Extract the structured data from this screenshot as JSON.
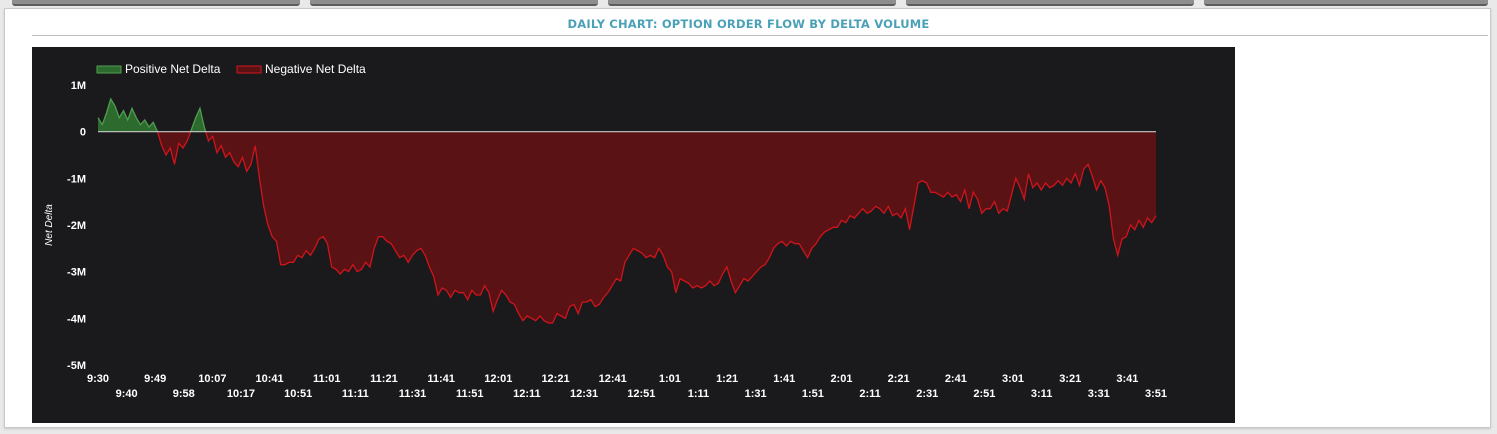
{
  "panel": {
    "title": "DAILY CHART: OPTION ORDER FLOW BY DELTA VOLUME"
  },
  "colors": {
    "positive_fill": "#2d6a2d",
    "positive_line": "#4f9d4f",
    "negative_fill": "#5b1215",
    "negative_line": "#d0141b",
    "zero_line": "#c8c8c8",
    "chart_bg": "#1a1a1c",
    "title": "#4aa1b7"
  },
  "chart_data": {
    "type": "area",
    "title": "",
    "xlabel": "",
    "ylabel": "Net Delta",
    "ylim": [
      -5000000,
      1000000
    ],
    "y_ticks": [
      {
        "v": 1000000,
        "label": "1M"
      },
      {
        "v": 0,
        "label": "0"
      },
      {
        "v": -1000000,
        "label": "-1M"
      },
      {
        "v": -2000000,
        "label": "-2M"
      },
      {
        "v": -3000000,
        "label": "-3M"
      },
      {
        "v": -4000000,
        "label": "-4M"
      },
      {
        "v": -5000000,
        "label": "-5M"
      }
    ],
    "x_ticks_top": [
      "9:30",
      "9:49",
      "10:07",
      "10:41",
      "11:01",
      "11:21",
      "11:41",
      "12:01",
      "12:21",
      "12:41",
      "1:01",
      "1:21",
      "1:41",
      "2:01",
      "2:21",
      "2:41",
      "3:01",
      "3:21",
      "3:41"
    ],
    "x_ticks_bottom": [
      "9:40",
      "9:58",
      "10:17",
      "10:51",
      "11:11",
      "11:31",
      "11:51",
      "12:11",
      "12:31",
      "12:51",
      "1:11",
      "1:31",
      "1:51",
      "2:11",
      "2:31",
      "2:51",
      "3:11",
      "3:31",
      "3:51"
    ],
    "legend": {
      "position": "top-left",
      "entries": [
        "Positive Net Delta",
        "Negative Net Delta"
      ]
    },
    "grid": false,
    "series": [
      {
        "name": "Net Delta",
        "values": [
          300000,
          150000,
          400000,
          700000,
          550000,
          300000,
          450000,
          250000,
          500000,
          300000,
          150000,
          250000,
          100000,
          200000,
          0,
          -300000,
          -500000,
          -350000,
          -700000,
          -250000,
          -350000,
          -200000,
          50000,
          300000,
          500000,
          100000,
          -200000,
          -100000,
          -450000,
          -300000,
          -550000,
          -450000,
          -650000,
          -750000,
          -550000,
          -850000,
          -700000,
          -300000,
          -1000000,
          -1600000,
          -2000000,
          -2250000,
          -2350000,
          -2850000,
          -2850000,
          -2800000,
          -2800000,
          -2650000,
          -2700000,
          -2550000,
          -2650000,
          -2500000,
          -2300000,
          -2250000,
          -2400000,
          -2900000,
          -2950000,
          -3050000,
          -2950000,
          -3000000,
          -2850000,
          -3000000,
          -2950000,
          -2800000,
          -2900000,
          -2500000,
          -2250000,
          -2250000,
          -2350000,
          -2400000,
          -2550000,
          -2700000,
          -2650000,
          -2800000,
          -2650000,
          -2550000,
          -2500000,
          -2650000,
          -2900000,
          -3100000,
          -3500000,
          -3350000,
          -3400000,
          -3550000,
          -3400000,
          -3450000,
          -3450000,
          -3600000,
          -3400000,
          -3500000,
          -3500000,
          -3300000,
          -3450000,
          -3850000,
          -3600000,
          -3400000,
          -3500000,
          -3650000,
          -3700000,
          -3900000,
          -4050000,
          -3950000,
          -4000000,
          -4050000,
          -3950000,
          -4050000,
          -4100000,
          -4100000,
          -3900000,
          -3950000,
          -4000000,
          -3750000,
          -3700000,
          -3900000,
          -3650000,
          -3650000,
          -3600000,
          -3750000,
          -3700000,
          -3550000,
          -3450000,
          -3300000,
          -3150000,
          -3200000,
          -2800000,
          -2650000,
          -2500000,
          -2550000,
          -2600000,
          -2700000,
          -2650000,
          -2700000,
          -2500000,
          -2650000,
          -2900000,
          -3000000,
          -3450000,
          -3150000,
          -3200000,
          -3250000,
          -3350000,
          -3300000,
          -3350000,
          -3300000,
          -3200000,
          -3300000,
          -3250000,
          -3050000,
          -2900000,
          -3200000,
          -3450000,
          -3300000,
          -3150000,
          -3200000,
          -3100000,
          -3000000,
          -2900000,
          -2850000,
          -2700000,
          -2500000,
          -2400000,
          -2350000,
          -2450000,
          -2350000,
          -2400000,
          -2400000,
          -2550000,
          -2700000,
          -2500000,
          -2400000,
          -2250000,
          -2150000,
          -2100000,
          -2050000,
          -2050000,
          -1900000,
          -1950000,
          -1800000,
          -1850000,
          -1750000,
          -1650000,
          -1750000,
          -1700000,
          -1600000,
          -1650000,
          -1750000,
          -1600000,
          -1800000,
          -1750000,
          -1850000,
          -1650000,
          -2100000,
          -1600000,
          -1100000,
          -1050000,
          -1100000,
          -1300000,
          -1300000,
          -1350000,
          -1400000,
          -1300000,
          -1400000,
          -1350000,
          -1500000,
          -1250000,
          -1650000,
          -1300000,
          -1450000,
          -1750000,
          -1650000,
          -1650000,
          -1500000,
          -1750000,
          -1650000,
          -1700000,
          -1350000,
          -1000000,
          -1200000,
          -1450000,
          -900000,
          -1200000,
          -1100000,
          -1250000,
          -1100000,
          -1200000,
          -1150000,
          -1050000,
          -1150000,
          -1000000,
          -1100000,
          -900000,
          -1150000,
          -800000,
          -700000,
          -950000,
          -1250000,
          -1050000,
          -1200000,
          -1600000,
          -2300000,
          -2650000,
          -2300000,
          -2250000,
          -2000000,
          -2100000,
          -1900000,
          -2050000,
          -1850000,
          -1950000,
          -1800000
        ]
      }
    ]
  }
}
